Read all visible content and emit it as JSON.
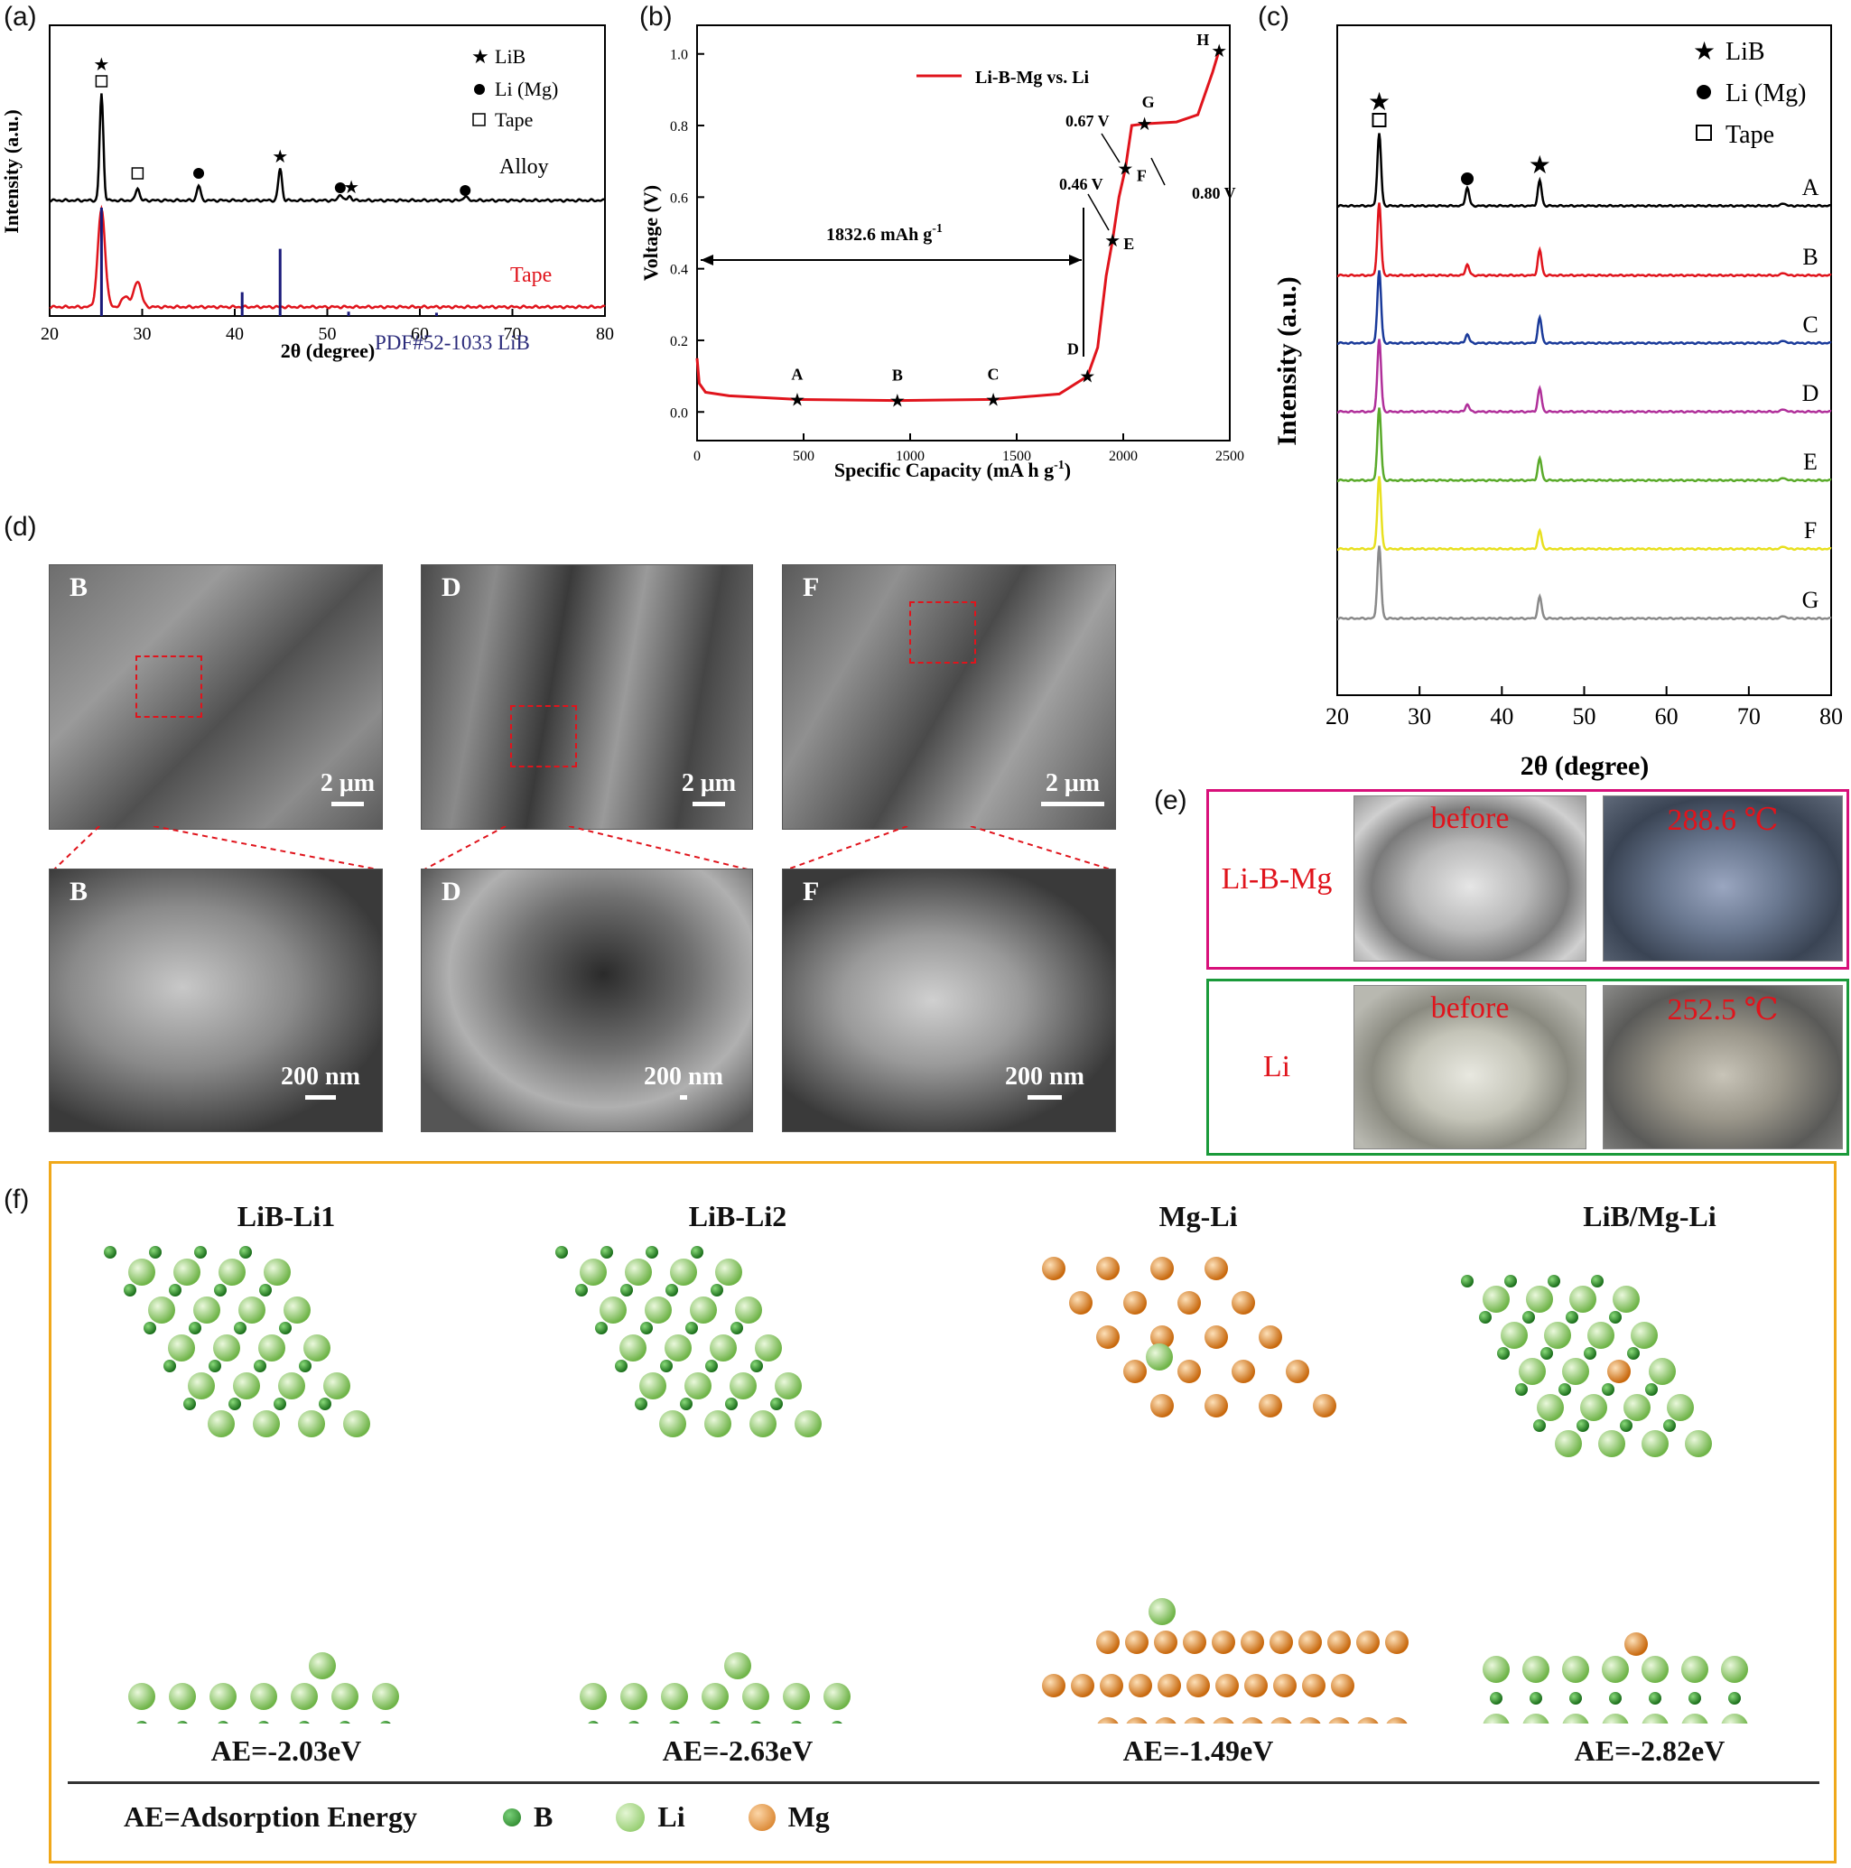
{
  "panels": {
    "a": {
      "label": "(a)",
      "ylabel": "Intensity (a.u.)",
      "xlabel": "2θ (degree)",
      "legend": [
        "LiB",
        "Li (Mg)",
        "Tape"
      ],
      "trace_labels": {
        "alloy": "Alloy",
        "tape": "Tape",
        "pdf": "PDF#52-1033 LiB"
      }
    },
    "b": {
      "label": "(b)",
      "ylabel": "Voltage (V)",
      "xlabel": "Specific Capacity (mA h g",
      "xlabel_sup": "-1",
      "xlabel_end": ")",
      "legend": "Li-B-Mg vs. Li",
      "capacity_label": "1832.6 mAh g",
      "capacity_sup": "-1",
      "annotations": [
        "0.67 V",
        "0.46 V",
        "0.80 V"
      ]
    },
    "c": {
      "label": "(c)",
      "ylabel": "Intensity (a.u.)",
      "xlabel": "2θ (degree)",
      "legend": [
        "LiB",
        "Li (Mg)",
        "Tape"
      ]
    },
    "d": {
      "label": "(d)",
      "images": [
        {
          "tag": "B",
          "scale": "2 μm"
        },
        {
          "tag": "D",
          "scale": "2 μm"
        },
        {
          "tag": "F",
          "scale": "2 μm"
        },
        {
          "tag": "B",
          "scale": "200 nm"
        },
        {
          "tag": "D",
          "scale": "200 nm"
        },
        {
          "tag": "F",
          "scale": "200 nm"
        }
      ]
    },
    "e": {
      "label": "(e)",
      "rows": [
        {
          "name": "Li-B-Mg",
          "before": "before",
          "after": "288.6 ℃"
        },
        {
          "name": "Li",
          "before": "before",
          "after": "252.5 ℃"
        }
      ]
    },
    "f": {
      "label": "(f)",
      "structures": [
        {
          "title": "LiB-Li1",
          "ae": "AE=-2.03eV"
        },
        {
          "title": "LiB-Li2",
          "ae": "AE=-2.63eV"
        },
        {
          "title": "Mg-Li",
          "ae": "AE=-1.49eV"
        },
        {
          "title": "LiB/Mg-Li",
          "ae": "AE=-2.82eV"
        }
      ],
      "ae_definition": "AE=Adsorption Energy",
      "atoms": [
        "B",
        "Li",
        "Mg"
      ],
      "colors": {
        "B": "#2e8b2e",
        "Li": "#8fcf6a",
        "Mg": "#e08a2a"
      }
    }
  },
  "chart_data": [
    {
      "type": "line",
      "panel": "a",
      "xlabel": "2θ (degree)",
      "ylabel": "Intensity (a.u.)",
      "xlim": [
        20,
        80
      ],
      "xticks": [
        20,
        30,
        40,
        50,
        60,
        70,
        80
      ],
      "series": [
        {
          "name": "Alloy",
          "color": "#000000",
          "peaks": [
            [
              25.6,
              1.0
            ],
            [
              29.5,
              0.12
            ],
            [
              36.1,
              0.14
            ],
            [
              44.9,
              0.3
            ],
            [
              51.4,
              0.06
            ],
            [
              52.4,
              0.04
            ],
            [
              64.9,
              0.04
            ]
          ]
        },
        {
          "name": "Tape",
          "color": "#e0141c",
          "peaks": [
            [
              25.6,
              0.9
            ],
            [
              28.2,
              0.1
            ],
            [
              29.5,
              0.24
            ]
          ]
        },
        {
          "name": "PDF#52-1033 LiB",
          "color": "#1a1a7a",
          "sticks": [
            [
              25.6,
              1.0
            ],
            [
              40.8,
              0.22
            ],
            [
              44.9,
              0.62
            ],
            [
              52.3,
              0.04
            ],
            [
              61.8,
              0.03
            ]
          ]
        }
      ],
      "legend": [
        "LiB",
        "Li (Mg)",
        "Tape"
      ]
    },
    {
      "type": "line",
      "panel": "b",
      "xlabel": "Specific Capacity (mA h g-1)",
      "ylabel": "Voltage (V)",
      "xlim": [
        0,
        2500
      ],
      "ylim": [
        -0.08,
        1.08
      ],
      "xticks": [
        0,
        500,
        1000,
        1500,
        2000,
        2500
      ],
      "yticks": [
        0.0,
        0.2,
        0.4,
        0.6,
        0.8,
        1.0
      ],
      "series": [
        {
          "name": "Li-B-Mg vs. Li",
          "color": "#e0141c",
          "points": [
            [
              0,
              0.15
            ],
            [
              10,
              0.08
            ],
            [
              40,
              0.055
            ],
            [
              150,
              0.045
            ],
            [
              470,
              0.035
            ],
            [
              940,
              0.032
            ],
            [
              1390,
              0.035
            ],
            [
              1700,
              0.05
            ],
            [
              1832,
              0.1
            ],
            [
              1880,
              0.18
            ],
            [
              1920,
              0.38
            ],
            [
              1950,
              0.48
            ],
            [
              1980,
              0.6
            ],
            [
              2010,
              0.68
            ],
            [
              2040,
              0.8
            ],
            [
              2100,
              0.805
            ],
            [
              2250,
              0.81
            ],
            [
              2350,
              0.83
            ],
            [
              2420,
              0.95
            ],
            [
              2450,
              1.01
            ]
          ]
        }
      ],
      "points": [
        {
          "label": "A",
          "x": 470,
          "y": 0.035
        },
        {
          "label": "B",
          "x": 940,
          "y": 0.032
        },
        {
          "label": "C",
          "x": 1390,
          "y": 0.035
        },
        {
          "label": "D",
          "x": 1832,
          "y": 0.1
        },
        {
          "label": "E",
          "x": 1950,
          "y": 0.48
        },
        {
          "label": "F",
          "x": 2010,
          "y": 0.68
        },
        {
          "label": "G",
          "x": 2100,
          "y": 0.805
        },
        {
          "label": "H",
          "x": 2450,
          "y": 1.01
        }
      ]
    },
    {
      "type": "line",
      "panel": "c",
      "xlabel": "2θ (degree)",
      "ylabel": "Intensity (a.u.)",
      "xlim": [
        20,
        80
      ],
      "xticks": [
        20,
        30,
        40,
        50,
        60,
        70,
        80
      ],
      "series": [
        {
          "name": "A",
          "color": "#000000",
          "peaks": [
            [
              25.1,
              1.0
            ],
            [
              35.8,
              0.25
            ],
            [
              44.6,
              0.35
            ],
            [
              74.2,
              0.04
            ]
          ]
        },
        {
          "name": "B",
          "color": "#e0141c",
          "peaks": [
            [
              25.1,
              1.0
            ],
            [
              35.8,
              0.15
            ],
            [
              44.6,
              0.35
            ],
            [
              74.2,
              0.04
            ]
          ]
        },
        {
          "name": "C",
          "color": "#1a3a9a",
          "peaks": [
            [
              25.1,
              1.0
            ],
            [
              35.8,
              0.12
            ],
            [
              44.6,
              0.35
            ],
            [
              74.2,
              0.04
            ]
          ]
        },
        {
          "name": "D",
          "color": "#b0309a",
          "peaks": [
            [
              25.1,
              1.0
            ],
            [
              35.8,
              0.1
            ],
            [
              44.6,
              0.32
            ],
            [
              74.2,
              0.04
            ]
          ]
        },
        {
          "name": "E",
          "color": "#5aaa2a",
          "peaks": [
            [
              25.1,
              1.0
            ],
            [
              44.6,
              0.3
            ],
            [
              74.2,
              0.04
            ]
          ]
        },
        {
          "name": "F",
          "color": "#e8e020",
          "peaks": [
            [
              25.1,
              1.0
            ],
            [
              44.6,
              0.25
            ],
            [
              74.2,
              0.04
            ]
          ]
        },
        {
          "name": "G",
          "color": "#8a8a8a",
          "peaks": [
            [
              25.1,
              1.0
            ],
            [
              44.6,
              0.3
            ],
            [
              74.2,
              0.04
            ]
          ]
        }
      ],
      "legend": [
        "LiB",
        "Li (Mg)",
        "Tape"
      ]
    }
  ]
}
